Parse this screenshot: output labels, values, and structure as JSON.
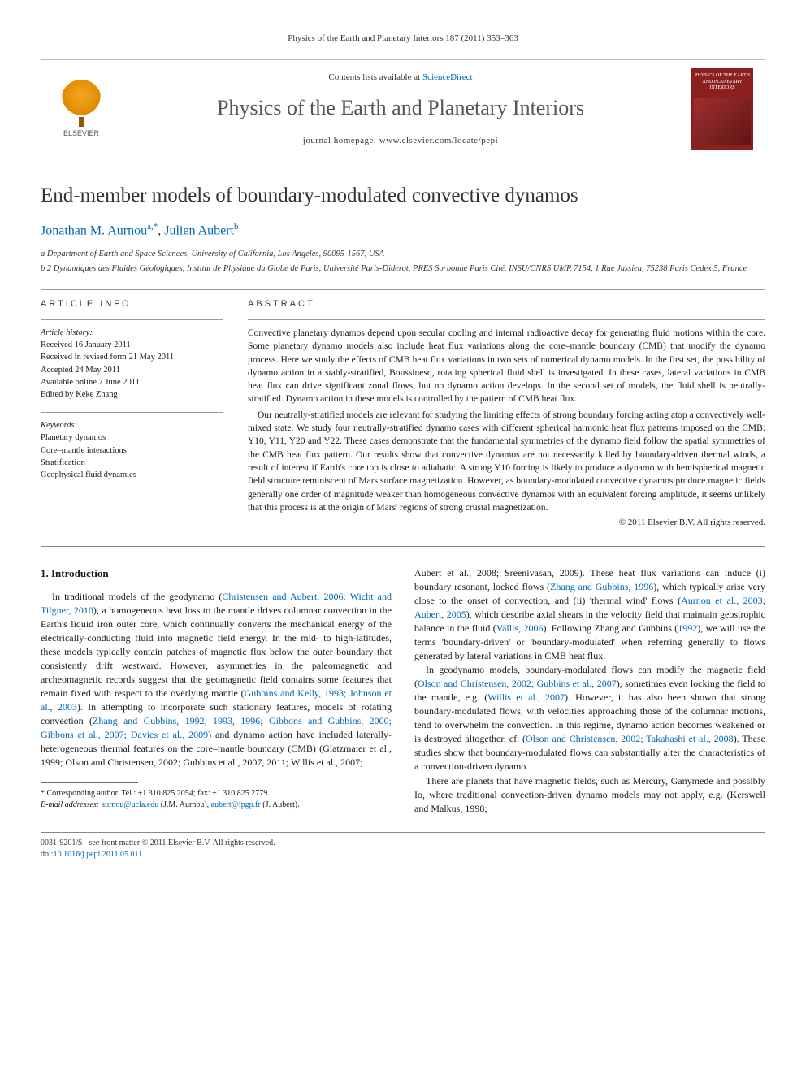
{
  "header_citation": "Physics of the Earth and Planetary Interiors 187 (2011) 353–363",
  "banner": {
    "contents_prefix": "Contents lists available at ",
    "contents_link": "ScienceDirect",
    "journal_name": "Physics of the Earth and Planetary Interiors",
    "homepage_prefix": "journal homepage: ",
    "homepage_url": "www.elsevier.com/locate/pepi",
    "publisher": "ELSEVIER",
    "cover_text": "PHYSICS OF THE EARTH AND PLANETARY INTERIORS"
  },
  "title": "End-member models of boundary-modulated convective dynamos",
  "authors": [
    {
      "name": "Jonathan M. Aurnou",
      "sup": "a,*"
    },
    {
      "name": "Julien Aubert",
      "sup": "b"
    }
  ],
  "affiliations": [
    "a Department of Earth and Space Sciences, University of California, Los Angeles, 90095-1567, USA",
    "b 2 Dynamiques des Fluides Géologiques, Institut de Physique du Globe de Paris, Université Paris-Diderot, PRES Sorbonne Paris Cité, INSU/CNRS UMR 7154, 1 Rue Jussieu, 75238 Paris Cedex 5, France"
  ],
  "article_info": {
    "heading": "ARTICLE INFO",
    "history_label": "Article history:",
    "history": [
      "Received 16 January 2011",
      "Received in revised form 21 May 2011",
      "Accepted 24 May 2011",
      "Available online 7 June 2011",
      "Edited by Keke Zhang"
    ],
    "keywords_label": "Keywords:",
    "keywords": [
      "Planetary dynamos",
      "Core–mantle interactions",
      "Stratification",
      "Geophysical fluid dynamics"
    ]
  },
  "abstract": {
    "heading": "ABSTRACT",
    "paragraphs": [
      "Convective planetary dynamos depend upon secular cooling and internal radioactive decay for generating fluid motions within the core. Some planetary dynamo models also include heat flux variations along the core–mantle boundary (CMB) that modify the dynamo process. Here we study the effects of CMB heat flux variations in two sets of numerical dynamo models. In the first set, the possibility of dynamo action in a stably-stratified, Boussinesq, rotating spherical fluid shell is investigated. In these cases, lateral variations in CMB heat flux can drive significant zonal flows, but no dynamo action develops. In the second set of models, the fluid shell is neutrally-stratified. Dynamo action in these models is controlled by the pattern of CMB heat flux.",
      "Our neutrally-stratified models are relevant for studying the limiting effects of strong boundary forcing acting atop a convectively well-mixed state. We study four neutrally-stratified dynamo cases with different spherical harmonic heat flux patterns imposed on the CMB: Y10, Y11, Y20 and Y22. These cases demonstrate that the fundamental symmetries of the dynamo field follow the spatial symmetries of the CMB heat flux pattern. Our results show that convective dynamos are not necessarily killed by boundary-driven thermal winds, a result of interest if Earth's core top is close to adiabatic. A strong Y10 forcing is likely to produce a dynamo with hemispherical magnetic field structure reminiscent of Mars surface magnetization. However, as boundary-modulated convective dynamos produce magnetic fields generally one order of magnitude weaker than homogeneous convective dynamos with an equivalent forcing amplitude, it seems unlikely that this process is at the origin of Mars' regions of strong crustal magnetization."
    ],
    "copyright": "© 2011 Elsevier B.V. All rights reserved."
  },
  "section_heading": "1. Introduction",
  "col_left": [
    "In traditional models of the geodynamo (Christensen and Aubert, 2006; Wicht and Tilgner, 2010), a homogeneous heat loss to the mantle drives columnar convection in the Earth's liquid iron outer core, which continually converts the mechanical energy of the electrically-conducting fluid into magnetic field energy. In the mid- to high-latitudes, these models typically contain patches of magnetic flux below the outer boundary that consistently drift westward. However, asymmetries in the paleomagnetic and archeomagnetic records suggest that the geomagnetic field contains some features that remain fixed with respect to the overlying mantle (Gubbins and Kelly, 1993; Johnson et al., 2003). In attempting to incorporate such stationary features, models of rotating convection (Zhang and Gubbins, 1992, 1993, 1996; Gibbons and Gubbins, 2000; Gibbons et al., 2007; Davies et al., 2009) and dynamo action have included laterally-heterogeneous thermal features on the core–mantle boundary (CMB) (Glatzmaier et al., 1999; Olson and Christensen, 2002; Gubbins et al., 2007, 2011; Willis et al., 2007;"
  ],
  "col_right": [
    "Aubert et al., 2008; Sreenivasan, 2009). These heat flux variations can induce (i) boundary resonant, locked flows (Zhang and Gubbins, 1996), which typically arise very close to the onset of convection, and (ii) 'thermal wind' flows (Aurnou et al., 2003; Aubert, 2005), which describe axial shears in the velocity field that maintain geostrophic balance in the fluid (Vallis, 2006). Following Zhang and Gubbins (1992), we will use the terms 'boundary-driven' or 'boundary-modulated' when referring generally to flows generated by lateral variations in CMB heat flux.",
    "In geodynamo models, boundary-modulated flows can modify the magnetic field (Olson and Christensen, 2002; Gubbins et al., 2007), sometimes even locking the field to the mantle, e.g. (Willis et al., 2007). However, it has also been shown that strong boundary-modulated flows, with velocities approaching those of the columnar motions, tend to overwhelm the convection. In this regime, dynamo action becomes weakened or is destroyed altogether, cf. (Olson and Christensen, 2002; Takahashi et al., 2008). These studies show that boundary-modulated flows can substantially alter the characteristics of a convection-driven dynamo.",
    "There are planets that have magnetic fields, such as Mercury, Ganymede and possibly Io, where traditional convection-driven dynamo models may not apply, e.g. (Kerswell and Malkus, 1998;"
  ],
  "footnote": {
    "corr": "* Corresponding author. Tel.: +1 310 825 2054; fax: +1 310 825 2779.",
    "emails_label": "E-mail addresses: ",
    "email1": "aurnou@ucla.edu",
    "email1_who": " (J.M. Aurnou), ",
    "email2": "aubert@ipgp.fr",
    "email2_who": " (J. Aubert)."
  },
  "footer": {
    "line1": "0031-9201/$ - see front matter © 2011 Elsevier B.V. All rights reserved.",
    "doi_label": "doi:",
    "doi": "10.1016/j.pepi.2011.05.011"
  },
  "links_in_body": {
    "refs": "styled-inline"
  }
}
